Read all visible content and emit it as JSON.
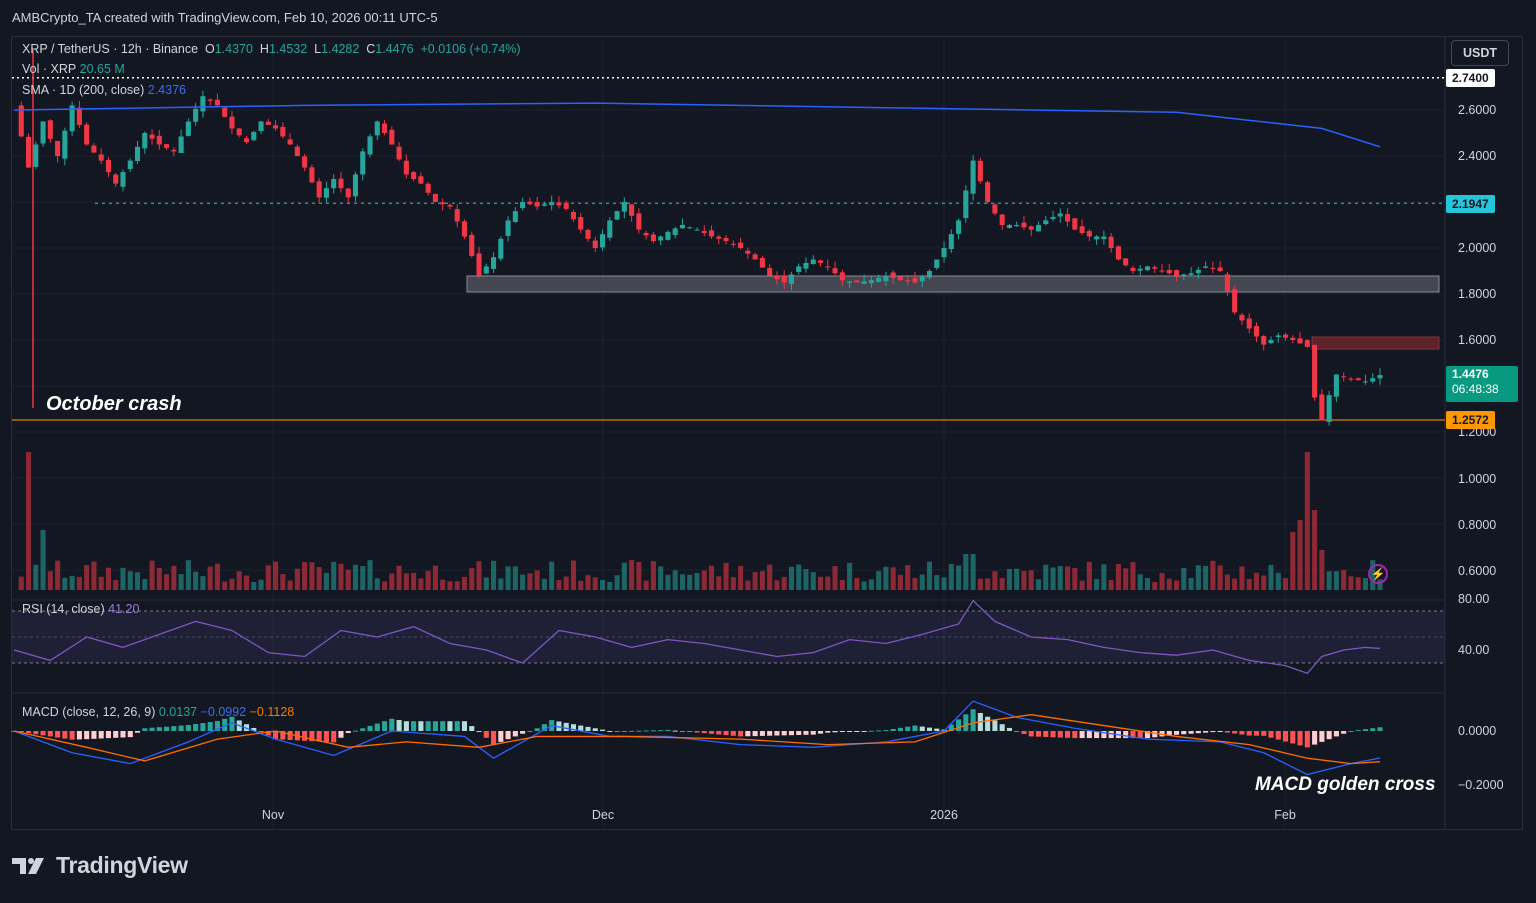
{
  "header": {
    "created_by": "AMBCrypto_TA created with TradingView.com, Feb 10, 2026 00:11 UTC-5"
  },
  "currency_button": "USDT",
  "legend": {
    "symbol": "XRP / TetherUS · 12h · Binance",
    "ohlc": {
      "o_label": "O",
      "open": "1.4370",
      "h_label": "H",
      "high": "1.4532",
      "l_label": "L",
      "low": "1.4282",
      "c_label": "C",
      "close": "1.4476",
      "change": "+0.0106 (+0.74%)"
    },
    "vol_label": "Vol · XRP",
    "vol_value": "20.65 M",
    "sma_label": "SMA · 1D (200, close)",
    "sma_value": "2.4376",
    "rsi_label": "RSI (14, close)",
    "rsi_value": "41.20",
    "macd_label": "MACD (close, 12, 26, 9)",
    "macd_hist": "0.0137",
    "macd_line": "−0.0992",
    "macd_signal": "−0.1128"
  },
  "annotations": {
    "october_crash": "October crash",
    "macd_cross": "MACD golden cross"
  },
  "price_tags": {
    "top_level": "2.7400",
    "resistance": "2.1947",
    "current_price": "1.4476",
    "countdown": "06:48:38",
    "support": "1.2572"
  },
  "footer": {
    "brand": "TradingView"
  },
  "colors": {
    "background": "#131722",
    "up": "#26a69a",
    "down": "#f23645",
    "sma": "#2962ff",
    "rsi": "#7e57c2",
    "macd_line": "#2962ff",
    "macd_signal": "#ff6d00",
    "support_line": "#ff9800"
  },
  "chart_data": [
    {
      "type": "candlestick",
      "title": "XRP / TetherUS · 12h · Binance",
      "x_ticks": [
        "Nov",
        "Dec",
        "2026",
        "Feb"
      ],
      "y_ticks": [
        "2.6000",
        "2.4000",
        "2.2000",
        "2.0000",
        "1.8000",
        "1.6000",
        "1.2000",
        "1.0000",
        "0.8000",
        "0.6000"
      ],
      "ylim": [
        0.55,
        2.8
      ],
      "price_path": [
        [
          0,
          2.62
        ],
        [
          2,
          2.35
        ],
        [
          4,
          2.55
        ],
        [
          6,
          2.4
        ],
        [
          8,
          2.62
        ],
        [
          10,
          2.45
        ],
        [
          12,
          2.38
        ],
        [
          14,
          2.28
        ],
        [
          16,
          2.38
        ],
        [
          18,
          2.5
        ],
        [
          20,
          2.45
        ],
        [
          22,
          2.42
        ],
        [
          24,
          2.55
        ],
        [
          26,
          2.66
        ],
        [
          28,
          2.62
        ],
        [
          30,
          2.52
        ],
        [
          32,
          2.46
        ],
        [
          34,
          2.55
        ],
        [
          36,
          2.52
        ],
        [
          38,
          2.45
        ],
        [
          40,
          2.35
        ],
        [
          42,
          2.22
        ],
        [
          44,
          2.3
        ],
        [
          46,
          2.22
        ],
        [
          48,
          2.42
        ],
        [
          50,
          2.55
        ],
        [
          52,
          2.45
        ],
        [
          54,
          2.32
        ],
        [
          56,
          2.28
        ],
        [
          58,
          2.2
        ],
        [
          60,
          2.18
        ],
        [
          62,
          2.05
        ],
        [
          64,
          1.88
        ],
        [
          66,
          1.96
        ],
        [
          68,
          2.12
        ],
        [
          70,
          2.2
        ],
        [
          72,
          2.18
        ],
        [
          74,
          2.2
        ],
        [
          76,
          2.17
        ],
        [
          78,
          2.08
        ],
        [
          80,
          2.0
        ],
        [
          82,
          2.12
        ],
        [
          84,
          2.2
        ],
        [
          86,
          2.08
        ],
        [
          88,
          2.03
        ],
        [
          90,
          2.07
        ],
        [
          92,
          2.1
        ],
        [
          94,
          2.08
        ],
        [
          96,
          2.05
        ],
        [
          98,
          2.03
        ],
        [
          100,
          2.0
        ],
        [
          102,
          1.95
        ],
        [
          104,
          1.88
        ],
        [
          106,
          1.85
        ],
        [
          108,
          1.92
        ],
        [
          110,
          1.95
        ],
        [
          112,
          1.92
        ],
        [
          114,
          1.86
        ],
        [
          116,
          1.85
        ],
        [
          118,
          1.86
        ],
        [
          120,
          1.88
        ],
        [
          122,
          1.86
        ],
        [
          124,
          1.85
        ],
        [
          126,
          1.9
        ],
        [
          128,
          2.0
        ],
        [
          130,
          2.12
        ],
        [
          132,
          2.38
        ],
        [
          134,
          2.2
        ],
        [
          136,
          2.1
        ],
        [
          138,
          2.1
        ],
        [
          140,
          2.08
        ],
        [
          142,
          2.12
        ],
        [
          144,
          2.15
        ],
        [
          146,
          2.08
        ],
        [
          148,
          2.05
        ],
        [
          150,
          2.05
        ],
        [
          152,
          1.95
        ],
        [
          154,
          1.9
        ],
        [
          156,
          1.92
        ],
        [
          158,
          1.9
        ],
        [
          160,
          1.88
        ],
        [
          162,
          1.89
        ],
        [
          164,
          1.92
        ],
        [
          166,
          1.9
        ],
        [
          168,
          1.72
        ],
        [
          170,
          1.65
        ],
        [
          172,
          1.58
        ],
        [
          174,
          1.62
        ],
        [
          176,
          1.6
        ],
        [
          178,
          1.57
        ],
        [
          179,
          1.35
        ],
        [
          180,
          1.25
        ],
        [
          181,
          1.36
        ],
        [
          182,
          1.45
        ],
        [
          184,
          1.43
        ],
        [
          186,
          1.42
        ],
        [
          188,
          1.4476
        ]
      ]
    },
    {
      "type": "line",
      "name": "SMA · 1D (200, close)",
      "x": [
        0,
        40,
        80,
        120,
        140,
        160,
        180,
        188
      ],
      "y": [
        2.6,
        2.62,
        2.63,
        2.61,
        2.6,
        2.59,
        2.52,
        2.44
      ]
    },
    {
      "type": "line",
      "name": "RSI (14, close)",
      "y_ticks": [
        "80.00",
        "40.00"
      ],
      "ylim": [
        10,
        90
      ],
      "x": [
        0,
        5,
        10,
        15,
        20,
        25,
        30,
        35,
        40,
        45,
        50,
        55,
        60,
        65,
        70,
        75,
        80,
        85,
        90,
        95,
        100,
        105,
        110,
        115,
        120,
        125,
        130,
        132,
        135,
        140,
        145,
        150,
        155,
        160,
        165,
        170,
        175,
        178,
        180,
        183,
        186,
        188
      ],
      "y": [
        40,
        32,
        50,
        42,
        52,
        62,
        55,
        38,
        35,
        55,
        50,
        58,
        45,
        40,
        30,
        55,
        50,
        42,
        48,
        45,
        40,
        35,
        38,
        48,
        45,
        52,
        60,
        78,
        62,
        50,
        48,
        42,
        38,
        36,
        40,
        32,
        28,
        22,
        35,
        40,
        42,
        41.2
      ]
    },
    {
      "type": "bar+line",
      "name": "MACD (close, 12, 26, 9)",
      "y_ticks": [
        "0.0000",
        "−0.2000"
      ],
      "ylim": [
        -0.26,
        0.14
      ],
      "macd": [
        [
          0,
          0
        ],
        [
          8,
          -0.08
        ],
        [
          16,
          -0.12
        ],
        [
          24,
          -0.04
        ],
        [
          30,
          0.03
        ],
        [
          36,
          -0.03
        ],
        [
          44,
          -0.09
        ],
        [
          52,
          0
        ],
        [
          62,
          -0.02
        ],
        [
          66,
          -0.1
        ],
        [
          74,
          0.02
        ],
        [
          82,
          -0.02
        ],
        [
          90,
          -0.02
        ],
        [
          100,
          -0.05
        ],
        [
          110,
          -0.06
        ],
        [
          120,
          -0.04
        ],
        [
          128,
          0.0
        ],
        [
          132,
          0.11
        ],
        [
          138,
          0.05
        ],
        [
          146,
          0.01
        ],
        [
          156,
          -0.03
        ],
        [
          166,
          -0.04
        ],
        [
          172,
          -0.08
        ],
        [
          178,
          -0.16
        ],
        [
          184,
          -0.12
        ],
        [
          188,
          -0.0992
        ]
      ],
      "signal": [
        [
          0,
          0
        ],
        [
          10,
          -0.06
        ],
        [
          18,
          -0.11
        ],
        [
          28,
          -0.03
        ],
        [
          36,
          0.0
        ],
        [
          46,
          -0.06
        ],
        [
          54,
          -0.04
        ],
        [
          64,
          -0.06
        ],
        [
          72,
          -0.02
        ],
        [
          84,
          -0.02
        ],
        [
          100,
          -0.03
        ],
        [
          112,
          -0.05
        ],
        [
          124,
          -0.04
        ],
        [
          132,
          0.03
        ],
        [
          140,
          0.06
        ],
        [
          150,
          0.02
        ],
        [
          160,
          -0.02
        ],
        [
          170,
          -0.05
        ],
        [
          178,
          -0.1
        ],
        [
          184,
          -0.12
        ],
        [
          188,
          -0.1128
        ]
      ],
      "hist_last": 0.0137
    }
  ]
}
